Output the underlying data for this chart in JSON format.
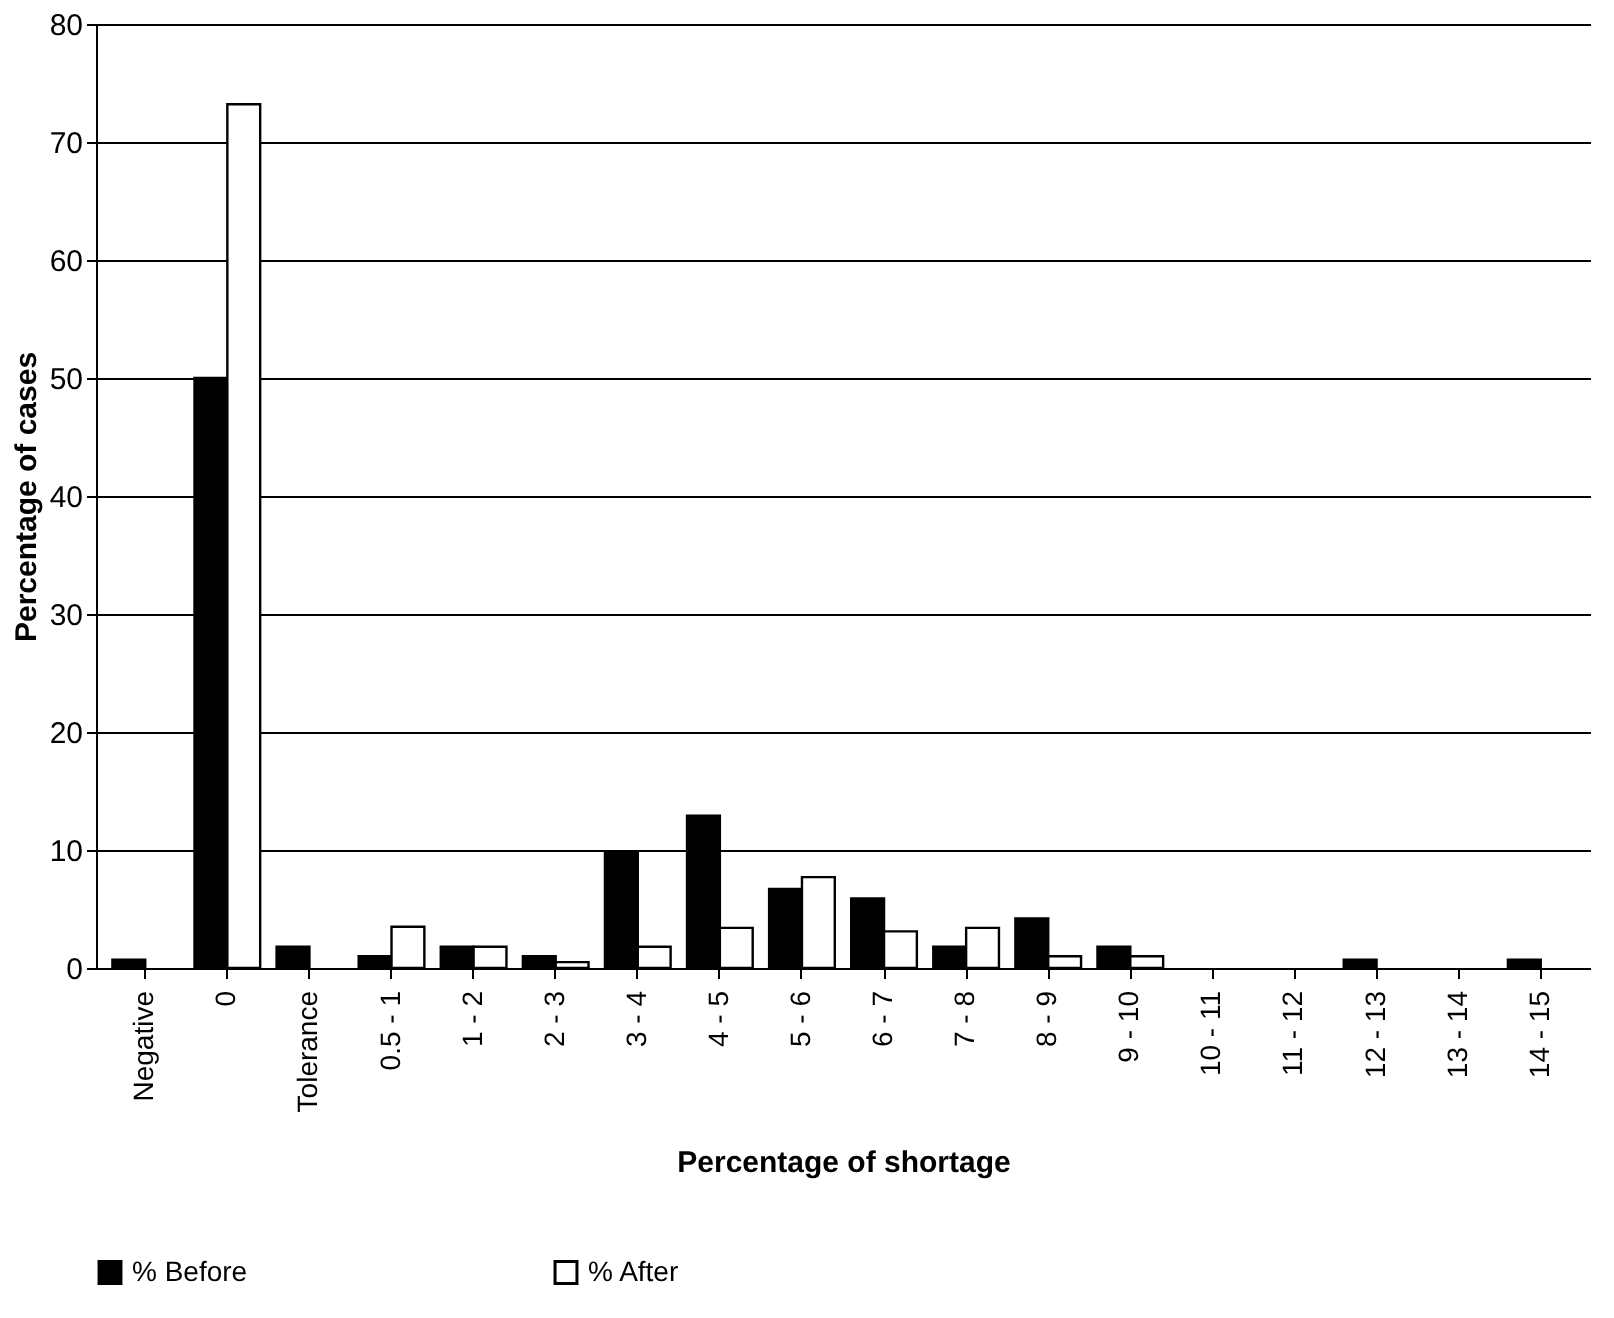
{
  "chart_data": {
    "type": "bar",
    "xlabel": "Percentage of shortage",
    "ylabel": "Percentage of cases",
    "categories": [
      "Negative",
      "0",
      "Tolerance",
      "0.5 - 1",
      "1 - 2",
      "2 - 3",
      "3 - 4",
      "4 - 5",
      "5 - 6",
      "6 - 7",
      "7 - 8",
      "8 - 9",
      "9 - 10",
      "10 - 11",
      "11 - 12",
      "12 - 13",
      "13 - 14",
      "14 - 15"
    ],
    "series": [
      {
        "name": "% Before",
        "color": "#000000",
        "values": [
          0.7,
          50,
          1.8,
          1,
          1.8,
          1,
          9.9,
          12.9,
          6.7,
          5.9,
          1.8,
          4.2,
          1.8,
          null,
          null,
          0.7,
          null,
          0.7
        ]
      },
      {
        "name": "% After",
        "color": "#ffffff",
        "values": [
          null,
          73.2,
          null,
          3.5,
          1.8,
          0.5,
          1.8,
          3.4,
          7.7,
          3.1,
          3.4,
          1,
          1,
          null,
          null,
          null,
          null,
          null
        ]
      }
    ],
    "ylim": [
      0,
      80
    ],
    "yticks": [
      0,
      10,
      20,
      30,
      40,
      50,
      60,
      70,
      80
    ],
    "grid": "y",
    "legend": "bottom"
  }
}
